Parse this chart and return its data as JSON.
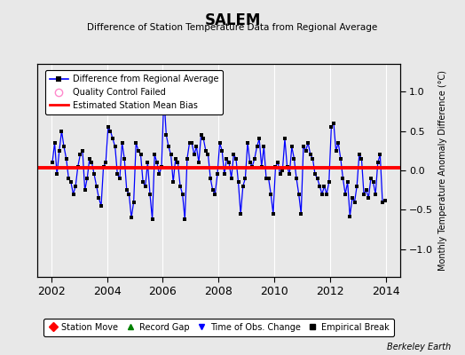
{
  "title": "SALEM",
  "subtitle": "Difference of Station Temperature Data from Regional Average",
  "ylabel": "Monthly Temperature Anomaly Difference (°C)",
  "bias": 0.03,
  "xlim": [
    2001.5,
    2014.5
  ],
  "ylim": [
    -1.35,
    1.35
  ],
  "yticks": [
    -1,
    -0.5,
    0,
    0.5,
    1
  ],
  "xticks": [
    2002,
    2004,
    2006,
    2008,
    2010,
    2012,
    2014
  ],
  "background_color": "#e8e8e8",
  "line_color": "#0000ff",
  "bias_color": "#ff0000",
  "marker_color": "#000000",
  "legend1_items": [
    "Difference from Regional Average",
    "Quality Control Failed",
    "Estimated Station Mean Bias"
  ],
  "legend2_items": [
    "Station Move",
    "Record Gap",
    "Time of Obs. Change",
    "Empirical Break"
  ],
  "footer": "Berkeley Earth",
  "data": [
    [
      2002.0417,
      0.1
    ],
    [
      2002.125,
      0.35
    ],
    [
      2002.2083,
      -0.05
    ],
    [
      2002.2917,
      0.25
    ],
    [
      2002.375,
      0.5
    ],
    [
      2002.4583,
      0.3
    ],
    [
      2002.5417,
      0.15
    ],
    [
      2002.625,
      -0.1
    ],
    [
      2002.7083,
      -0.15
    ],
    [
      2002.7917,
      -0.3
    ],
    [
      2002.875,
      -0.2
    ],
    [
      2002.9583,
      0.05
    ],
    [
      2003.0417,
      0.2
    ],
    [
      2003.125,
      0.25
    ],
    [
      2003.2083,
      -0.25
    ],
    [
      2003.2917,
      -0.1
    ],
    [
      2003.375,
      0.15
    ],
    [
      2003.4583,
      0.1
    ],
    [
      2003.5417,
      -0.05
    ],
    [
      2003.625,
      -0.2
    ],
    [
      2003.7083,
      -0.35
    ],
    [
      2003.7917,
      -0.45
    ],
    [
      2003.875,
      0.05
    ],
    [
      2003.9583,
      0.1
    ],
    [
      2004.0417,
      0.55
    ],
    [
      2004.125,
      0.5
    ],
    [
      2004.2083,
      0.4
    ],
    [
      2004.2917,
      0.3
    ],
    [
      2004.375,
      -0.05
    ],
    [
      2004.4583,
      -0.1
    ],
    [
      2004.5417,
      0.35
    ],
    [
      2004.625,
      0.15
    ],
    [
      2004.7083,
      -0.25
    ],
    [
      2004.7917,
      -0.3
    ],
    [
      2004.875,
      -0.6
    ],
    [
      2004.9583,
      -0.4
    ],
    [
      2005.0417,
      0.35
    ],
    [
      2005.125,
      0.25
    ],
    [
      2005.2083,
      0.2
    ],
    [
      2005.2917,
      -0.15
    ],
    [
      2005.375,
      -0.2
    ],
    [
      2005.4583,
      0.1
    ],
    [
      2005.5417,
      -0.3
    ],
    [
      2005.625,
      -0.62
    ],
    [
      2005.7083,
      0.2
    ],
    [
      2005.7917,
      0.1
    ],
    [
      2005.875,
      -0.05
    ],
    [
      2005.9583,
      0.05
    ],
    [
      2006.0417,
      0.95
    ],
    [
      2006.125,
      0.45
    ],
    [
      2006.2083,
      0.3
    ],
    [
      2006.2917,
      0.2
    ],
    [
      2006.375,
      -0.15
    ],
    [
      2006.4583,
      0.15
    ],
    [
      2006.5417,
      0.1
    ],
    [
      2006.625,
      -0.2
    ],
    [
      2006.7083,
      -0.3
    ],
    [
      2006.7917,
      -0.62
    ],
    [
      2006.875,
      0.15
    ],
    [
      2006.9583,
      0.35
    ],
    [
      2007.0417,
      0.35
    ],
    [
      2007.125,
      0.2
    ],
    [
      2007.2083,
      0.3
    ],
    [
      2007.2917,
      0.1
    ],
    [
      2007.375,
      0.45
    ],
    [
      2007.4583,
      0.4
    ],
    [
      2007.5417,
      0.25
    ],
    [
      2007.625,
      0.2
    ],
    [
      2007.7083,
      -0.1
    ],
    [
      2007.7917,
      -0.25
    ],
    [
      2007.875,
      -0.3
    ],
    [
      2007.9583,
      -0.05
    ],
    [
      2008.0417,
      0.35
    ],
    [
      2008.125,
      0.25
    ],
    [
      2008.2083,
      -0.05
    ],
    [
      2008.2917,
      0.15
    ],
    [
      2008.375,
      0.1
    ],
    [
      2008.4583,
      -0.1
    ],
    [
      2008.5417,
      0.2
    ],
    [
      2008.625,
      0.15
    ],
    [
      2008.7083,
      -0.15
    ],
    [
      2008.7917,
      -0.55
    ],
    [
      2008.875,
      -0.2
    ],
    [
      2008.9583,
      -0.1
    ],
    [
      2009.0417,
      0.35
    ],
    [
      2009.125,
      0.1
    ],
    [
      2009.2083,
      0.05
    ],
    [
      2009.2917,
      0.15
    ],
    [
      2009.375,
      0.3
    ],
    [
      2009.4583,
      0.4
    ],
    [
      2009.5417,
      0.05
    ],
    [
      2009.625,
      0.3
    ],
    [
      2009.7083,
      -0.1
    ],
    [
      2009.7917,
      -0.1
    ],
    [
      2009.875,
      -0.3
    ],
    [
      2009.9583,
      -0.55
    ],
    [
      2010.0417,
      0.05
    ],
    [
      2010.125,
      0.1
    ],
    [
      2010.2083,
      -0.05
    ],
    [
      2010.2917,
      0.0
    ],
    [
      2010.375,
      0.4
    ],
    [
      2010.4583,
      0.05
    ],
    [
      2010.5417,
      -0.05
    ],
    [
      2010.625,
      0.3
    ],
    [
      2010.7083,
      0.15
    ],
    [
      2010.7917,
      -0.1
    ],
    [
      2010.875,
      -0.3
    ],
    [
      2010.9583,
      -0.55
    ],
    [
      2011.0417,
      0.3
    ],
    [
      2011.125,
      0.25
    ],
    [
      2011.2083,
      0.35
    ],
    [
      2011.2917,
      0.2
    ],
    [
      2011.375,
      0.15
    ],
    [
      2011.4583,
      -0.05
    ],
    [
      2011.5417,
      -0.1
    ],
    [
      2011.625,
      -0.2
    ],
    [
      2011.7083,
      -0.3
    ],
    [
      2011.7917,
      -0.2
    ],
    [
      2011.875,
      -0.3
    ],
    [
      2011.9583,
      -0.15
    ],
    [
      2012.0417,
      0.55
    ],
    [
      2012.125,
      0.6
    ],
    [
      2012.2083,
      0.25
    ],
    [
      2012.2917,
      0.35
    ],
    [
      2012.375,
      0.15
    ],
    [
      2012.4583,
      -0.1
    ],
    [
      2012.5417,
      -0.3
    ],
    [
      2012.625,
      -0.15
    ],
    [
      2012.7083,
      -0.58
    ],
    [
      2012.7917,
      -0.35
    ],
    [
      2012.875,
      -0.4
    ],
    [
      2012.9583,
      -0.2
    ],
    [
      2013.0417,
      0.2
    ],
    [
      2013.125,
      0.15
    ],
    [
      2013.2083,
      -0.3
    ],
    [
      2013.2917,
      -0.25
    ],
    [
      2013.375,
      -0.35
    ],
    [
      2013.4583,
      -0.1
    ],
    [
      2013.5417,
      -0.15
    ],
    [
      2013.625,
      -0.3
    ],
    [
      2013.7083,
      0.1
    ],
    [
      2013.7917,
      0.2
    ],
    [
      2013.875,
      -0.4
    ],
    [
      2013.9583,
      -0.38
    ]
  ]
}
